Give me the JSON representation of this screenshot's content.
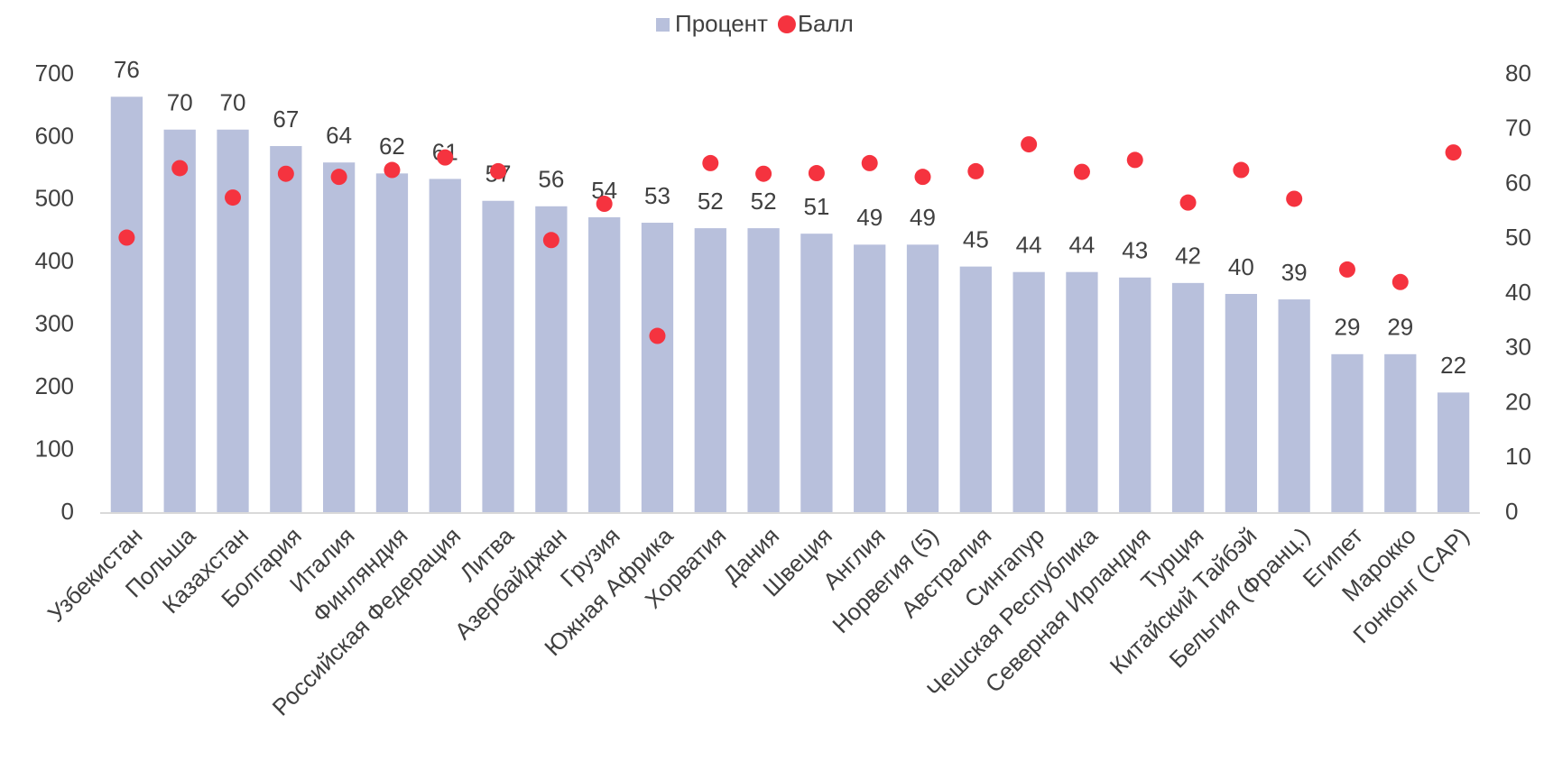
{
  "chart_data": {
    "type": "bar",
    "categories": [
      "Узбекистан",
      "Польша",
      "Казахстан",
      "Болгария",
      "Италия",
      "Финляндия",
      "Российская Федерация",
      "Литва",
      "Азербайджан",
      "Грузия",
      "Южная Африка",
      "Хорватия",
      "Дания",
      "Швеция",
      "Англия",
      "Норвегия (5)",
      "Австралия",
      "Сингапур",
      "Чешская Республика",
      "Северная Ирландия",
      "Турция",
      "Китайский Тайбэй",
      "Бельгия (Франц.)",
      "Египет",
      "Марокко",
      "Гонконг (САР)"
    ],
    "series": [
      {
        "name": "Процент",
        "type": "bar",
        "axis": "y2",
        "color": "#b8c0dc",
        "values": [
          76,
          70,
          70,
          67,
          64,
          62,
          61,
          57,
          56,
          54,
          53,
          52,
          52,
          51,
          49,
          49,
          45,
          44,
          44,
          43,
          42,
          40,
          39,
          29,
          29,
          22
        ]
      },
      {
        "name": "Балл",
        "type": "scatter",
        "color": "#f5333f",
        "values": [
          440,
          551,
          504,
          542,
          537,
          548,
          568,
          546,
          436,
          494,
          283,
          559,
          542,
          543,
          559,
          537,
          546,
          589,
          545,
          564,
          496,
          548,
          502,
          389,
          369,
          576
        ]
      }
    ],
    "ylim": [
      0,
      700
    ],
    "yticks": [
      0,
      100,
      200,
      300,
      400,
      500,
      600,
      700
    ],
    "y2lim": [
      0,
      80
    ],
    "y2ticks": [
      0,
      10,
      20,
      30,
      40,
      50,
      60,
      70,
      80
    ],
    "legend": "top"
  }
}
